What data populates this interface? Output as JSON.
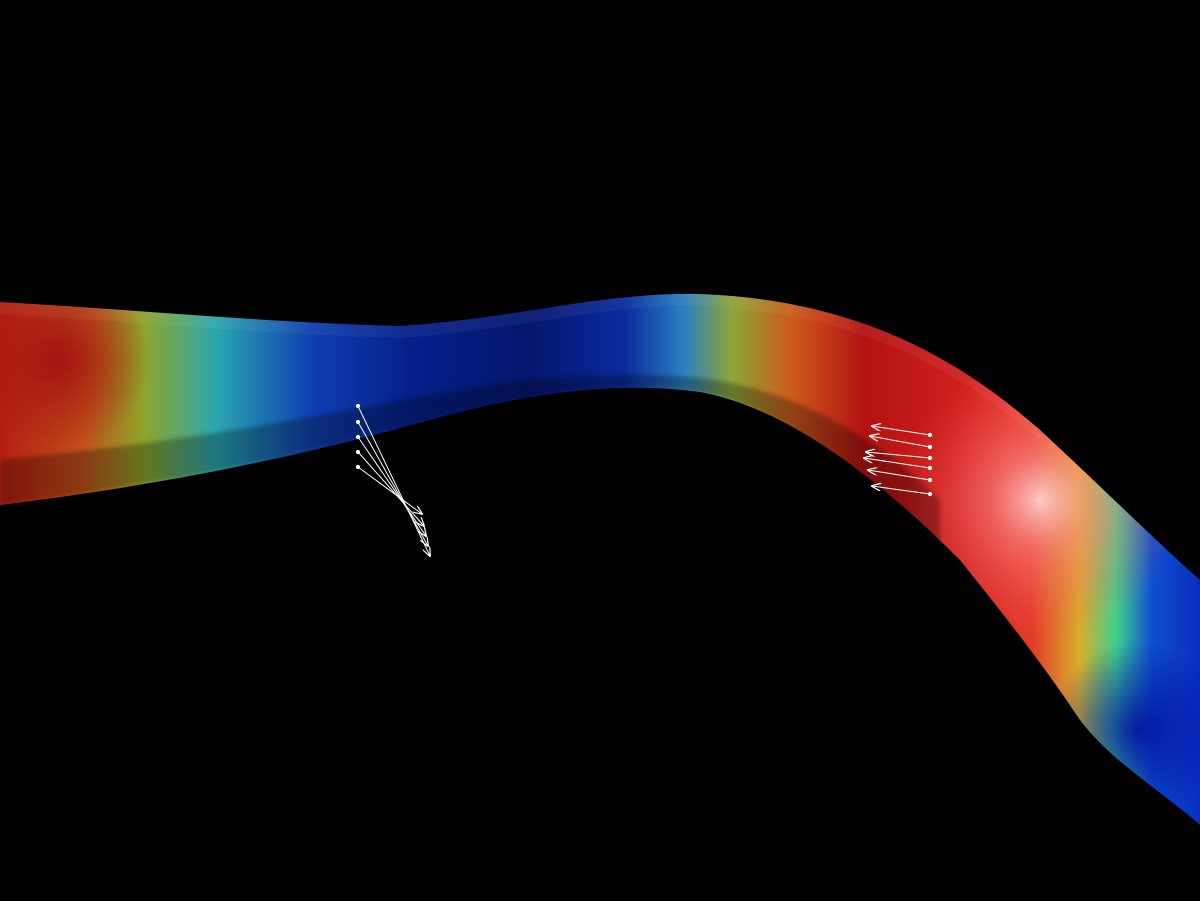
{
  "scene": {
    "background": "#000000",
    "colormap": "jet",
    "colormap_stops": [
      "#0a0a4a",
      "#0b1a8c",
      "#1f4fd0",
      "#2aa6c8",
      "#3fcf8e",
      "#b9c22a",
      "#d88a1c",
      "#c83218",
      "#a00d0d",
      "#ff8a8a"
    ],
    "vector_color": "#ffffff",
    "vector_groups": [
      {
        "name": "left-vector-cluster",
        "count": 5
      },
      {
        "name": "right-vector-cluster",
        "count": 6
      }
    ]
  }
}
